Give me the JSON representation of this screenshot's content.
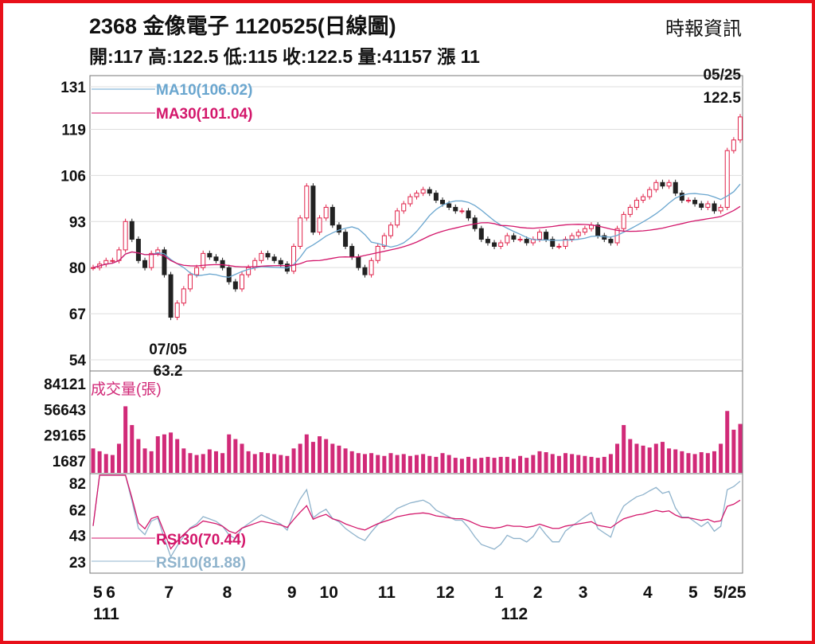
{
  "header": {
    "title": "2368  金像電子 1120525(日線圖)",
    "source": "時報資訊",
    "ohlc": "開:117 高:122.5 低:115 收:122.5 量:41157 漲 11"
  },
  "colors": {
    "up": "#e0224a",
    "down": "#222222",
    "ma10": "#6aa6cf",
    "ma30": "#d3176b",
    "volume": "#d12a78",
    "rsi10": "#8fb3cc",
    "rsi30": "#d3176b",
    "frame": "#e8101a"
  },
  "chart_data": [
    {
      "type": "candlestick",
      "title": "Price",
      "yticks": [
        "131",
        "119",
        "106",
        "93",
        "80",
        "67",
        "54"
      ],
      "ylim": [
        54,
        131
      ],
      "close": [
        80,
        81,
        82,
        82,
        85,
        93,
        88,
        82,
        80,
        84,
        85,
        78,
        66,
        70,
        74,
        78,
        80,
        84,
        83,
        82,
        80,
        76,
        74,
        78,
        80,
        82,
        84,
        83,
        82,
        81,
        79,
        86,
        94,
        103,
        90,
        94,
        97,
        92,
        90,
        86,
        83,
        80,
        78,
        82,
        86,
        89,
        92,
        96,
        98,
        100,
        101,
        102,
        101,
        99,
        98,
        97,
        96,
        96,
        94,
        91,
        88,
        87,
        86,
        87,
        89,
        88,
        88,
        87,
        88,
        90,
        88,
        86,
        86,
        88,
        89,
        90,
        91,
        92,
        89,
        88,
        87,
        91,
        95,
        97,
        99,
        100,
        102,
        104,
        103,
        104,
        101,
        99,
        99,
        98,
        97,
        98,
        96,
        97,
        113,
        116,
        122.5
      ],
      "legend": [
        {
          "label": "MA10(106.02)",
          "period": 10
        },
        {
          "label": "MA30(101.04)",
          "period": 30
        }
      ],
      "annotations": [
        {
          "date": "07/05",
          "value": "63.2",
          "index": 12
        },
        {
          "date": "05/25",
          "value": "122.5",
          "index": 100
        }
      ]
    },
    {
      "type": "bar",
      "title": "成交量(張)",
      "yticks": [
        "84121",
        "56643",
        "29165",
        "1687"
      ],
      "ylim": [
        1687,
        84121
      ],
      "values": [
        15000,
        12000,
        9000,
        8000,
        20000,
        60000,
        40000,
        25000,
        15000,
        12000,
        28000,
        30000,
        32000,
        25000,
        15000,
        10000,
        8000,
        9000,
        14000,
        12000,
        10000,
        30000,
        25000,
        20000,
        12000,
        9000,
        11000,
        10000,
        9000,
        8000,
        7000,
        15000,
        20000,
        30000,
        22000,
        28000,
        25000,
        20000,
        18000,
        15000,
        12000,
        10000,
        9000,
        10000,
        8000,
        7000,
        10000,
        8000,
        9000,
        7000,
        8000,
        9000,
        7000,
        6000,
        10000,
        8000,
        5000,
        4000,
        6000,
        4000,
        5000,
        6000,
        5000,
        6000,
        6000,
        4000,
        7000,
        5000,
        8000,
        12000,
        11000,
        9000,
        7000,
        10000,
        9000,
        8000,
        7000,
        6000,
        5000,
        6000,
        9000,
        20000,
        40000,
        25000,
        20000,
        18000,
        16000,
        20000,
        22000,
        15000,
        14000,
        12000,
        10000,
        9000,
        11000,
        10000,
        12000,
        20000,
        55000,
        35000,
        41157
      ]
    },
    {
      "type": "line",
      "title": "RSI",
      "yticks": [
        "82",
        "62",
        "43",
        "23"
      ],
      "ylim": [
        23,
        82
      ],
      "legend": [
        {
          "label": "RSI30(70.44)",
          "period": 30
        },
        {
          "label": "RSI10(81.88)",
          "period": 10
        }
      ]
    }
  ],
  "xaxis": {
    "ticks": [
      {
        "label": "5",
        "index": 0
      },
      {
        "label": "6",
        "index": 2
      },
      {
        "label": "7",
        "index": 11
      },
      {
        "label": "8",
        "index": 20
      },
      {
        "label": "9",
        "index": 30
      },
      {
        "label": "10",
        "index": 35
      },
      {
        "label": "11",
        "index": 44
      },
      {
        "label": "12",
        "index": 53
      },
      {
        "label": "1",
        "index": 62
      },
      {
        "label": "2",
        "index": 68
      },
      {
        "label": "3",
        "index": 75
      },
      {
        "label": "4",
        "index": 85
      },
      {
        "label": "5",
        "index": 92
      },
      {
        "label": "5/25",
        "index": 100
      }
    ],
    "years": [
      {
        "label": "111",
        "index": 1
      },
      {
        "label": "112",
        "index": 64
      }
    ]
  }
}
